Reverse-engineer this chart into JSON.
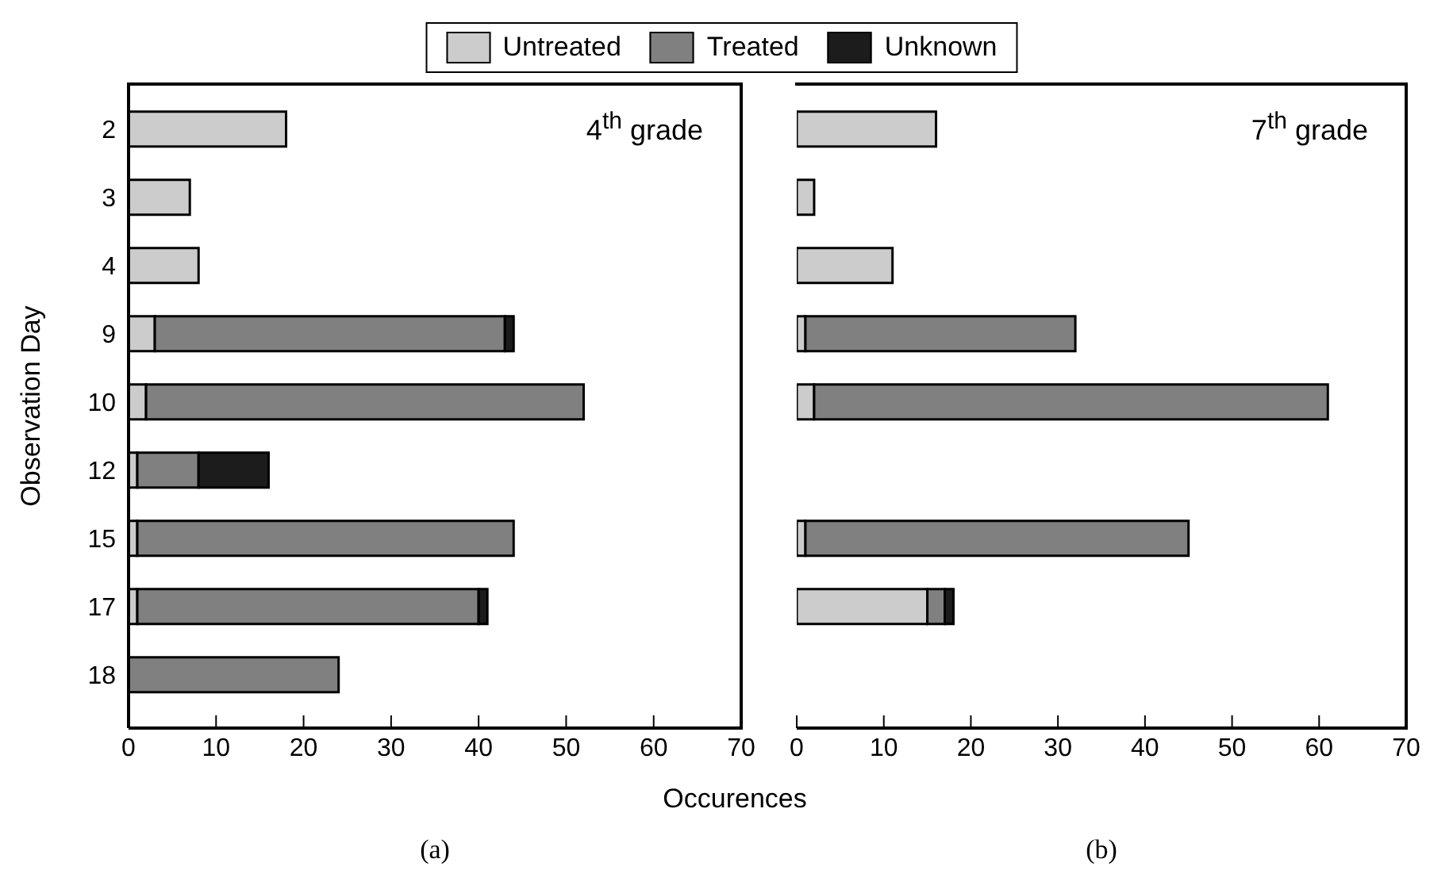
{
  "chart_data": [
    {
      "type": "bar",
      "orientation": "horizontal",
      "stacked": true,
      "title": "4$^{th}$ grade",
      "xlabel": "Occurences",
      "ylabel": "Observation Day",
      "categories": [
        "2",
        "3",
        "4",
        "9",
        "10",
        "12",
        "15",
        "17",
        "18"
      ],
      "series": [
        {
          "name": "Untreated",
          "color": "#cccccc",
          "values": [
            18,
            7,
            8,
            3,
            2,
            1,
            1,
            1,
            null
          ]
        },
        {
          "name": "Treated",
          "color": "#808080",
          "values": [
            null,
            null,
            null,
            40,
            50,
            7,
            43,
            39,
            24
          ]
        },
        {
          "name": "Unknown",
          "color": "#1c1c1c",
          "values": [
            null,
            null,
            null,
            1,
            null,
            8,
            null,
            1,
            null
          ]
        }
      ],
      "xlim": [
        0,
        70
      ],
      "xticks": [
        0,
        10,
        20,
        30,
        40,
        50,
        60,
        70
      ],
      "legend": "top",
      "annotations": [
        "(a)"
      ]
    },
    {
      "type": "bar",
      "orientation": "horizontal",
      "stacked": true,
      "title": "7$^{th}$ grade",
      "categories": [
        "2",
        "3",
        "4",
        "9",
        "10",
        "12",
        "15",
        "17",
        "18"
      ],
      "series": [
        {
          "color": "#cccccc",
          "values": [
            16,
            2,
            11,
            1,
            2,
            null,
            1,
            15,
            null
          ]
        },
        {
          "color": "#808080",
          "values": [
            null,
            null,
            null,
            31,
            59,
            null,
            44,
            2,
            null
          ]
        },
        {
          "color": "#1c1c1c",
          "values": [
            null,
            null,
            null,
            null,
            null,
            null,
            null,
            1,
            null
          ]
        }
      ],
      "xlim": [
        0,
        70
      ],
      "xticks": [
        0,
        10,
        20,
        30,
        40,
        50,
        60,
        70
      ],
      "tick_labels": "x",
      "annotations": [
        "(b)"
      ]
    }
  ]
}
